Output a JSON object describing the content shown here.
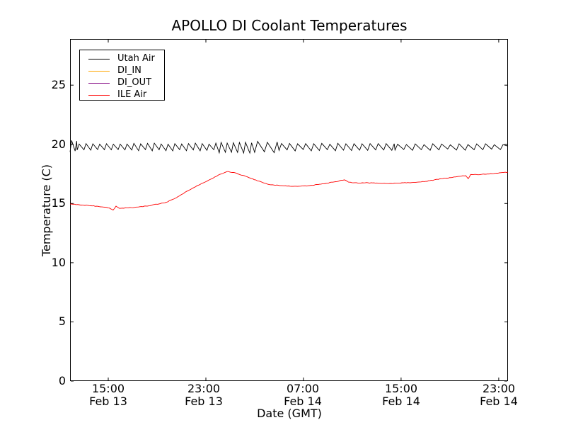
{
  "figure": {
    "background": "#ffffff"
  },
  "chart_data": {
    "type": "line",
    "title": "APOLLO DI Coolant Temperatures",
    "xlabel": "Date (GMT)",
    "ylabel": "Temperature (C)",
    "grid": false,
    "legend_position": "upper left",
    "ylim": [
      0,
      28.9
    ],
    "yticks": [
      0,
      5,
      10,
      15,
      20,
      25
    ],
    "ytick_labels": [
      "0",
      "5",
      "10",
      "15",
      "20",
      "25"
    ],
    "xlim_hours": [
      11.87,
      47.76
    ],
    "xticks": [
      {
        "hour": 15,
        "time": "15:00",
        "date": "Feb 13"
      },
      {
        "hour": 23,
        "time": "23:00",
        "date": "Feb 13"
      },
      {
        "hour": 31,
        "time": "07:00",
        "date": "Feb 14"
      },
      {
        "hour": 39,
        "time": "15:00",
        "date": "Feb 14"
      },
      {
        "hour": 47,
        "time": "23:00",
        "date": "Feb 14"
      }
    ],
    "series": [
      {
        "name": "Utah Air",
        "color": "#000000",
        "style": "sawtooth",
        "approx_range": [
          19.3,
          20.3
        ],
        "segments": [
          {
            "from": 11.87,
            "to": 12.45,
            "period": 0.42,
            "bottom": 19.4,
            "top": 20.3
          },
          {
            "from": 12.45,
            "to": 24.1,
            "period": 0.56,
            "bottom": 19.5,
            "top": 20.05
          },
          {
            "from": 24.1,
            "to": 27.0,
            "period": 0.5,
            "bottom": 19.32,
            "top": 20.15
          },
          {
            "from": 27.0,
            "to": 29.0,
            "period": 0.8,
            "bottom": 19.35,
            "top": 20.2
          },
          {
            "from": 29.0,
            "to": 38.5,
            "period": 0.66,
            "bottom": 19.5,
            "top": 20.05
          },
          {
            "from": 38.5,
            "to": 47.76,
            "period": 0.72,
            "bottom": 19.55,
            "top": 20.0
          }
        ],
        "end_value": 19.85
      },
      {
        "name": "DI_IN",
        "color": "#ffa500",
        "style": "line",
        "points": []
      },
      {
        "name": "DI_OUT",
        "color": "#800080",
        "style": "line",
        "points": []
      },
      {
        "name": "ILE Air",
        "color": "#ff0000",
        "style": "line",
        "noise": 0.045,
        "points": [
          [
            11.87,
            14.95
          ],
          [
            12.6,
            14.9
          ],
          [
            13.7,
            14.8
          ],
          [
            14.6,
            14.7
          ],
          [
            15.1,
            14.62
          ],
          [
            15.4,
            14.45
          ],
          [
            15.64,
            14.78
          ],
          [
            15.9,
            14.6
          ],
          [
            16.9,
            14.65
          ],
          [
            18.3,
            14.8
          ],
          [
            19.75,
            15.1
          ],
          [
            20.6,
            15.5
          ],
          [
            21.3,
            15.95
          ],
          [
            22.4,
            16.55
          ],
          [
            23.5,
            17.1
          ],
          [
            24.1,
            17.45
          ],
          [
            24.75,
            17.7
          ],
          [
            25.3,
            17.62
          ],
          [
            26.4,
            17.25
          ],
          [
            27.3,
            16.9
          ],
          [
            28.2,
            16.6
          ],
          [
            29.3,
            16.5
          ],
          [
            30.5,
            16.45
          ],
          [
            31.4,
            16.5
          ],
          [
            32.2,
            16.6
          ],
          [
            33.4,
            16.8
          ],
          [
            34.35,
            17.0
          ],
          [
            34.7,
            16.8
          ],
          [
            35.1,
            16.75
          ],
          [
            36.3,
            16.75
          ],
          [
            37.5,
            16.7
          ],
          [
            38.2,
            16.7
          ],
          [
            39.2,
            16.75
          ],
          [
            40.0,
            16.78
          ],
          [
            40.9,
            16.85
          ],
          [
            42.4,
            17.1
          ],
          [
            43.8,
            17.3
          ],
          [
            44.3,
            17.35
          ],
          [
            44.5,
            17.1
          ],
          [
            44.7,
            17.45
          ],
          [
            45.5,
            17.45
          ],
          [
            46.7,
            17.55
          ],
          [
            47.76,
            17.65
          ]
        ]
      }
    ]
  }
}
